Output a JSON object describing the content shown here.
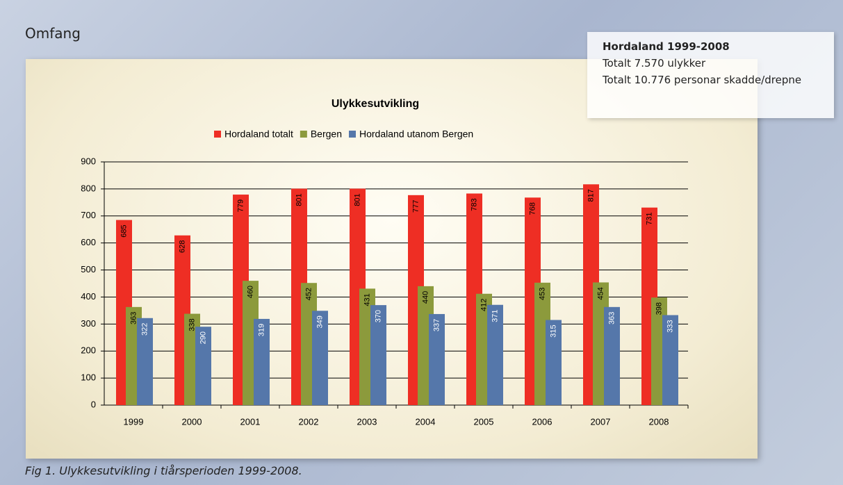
{
  "page": {
    "heading": "Omfang",
    "caption": "Fig 1. Ulykkesutvikling i tiårsperioden 1999-2008."
  },
  "info_box": {
    "title": "Hordaland 1999-2008",
    "lines": [
      "Totalt 7.570 ulykker",
      "Totalt 10.776 personar skadde/drepne"
    ]
  },
  "chart_data": {
    "type": "bar",
    "title": "Ulykkesutvikling",
    "categories": [
      "1999",
      "2000",
      "2001",
      "2002",
      "2003",
      "2004",
      "2005",
      "2006",
      "2007",
      "2008"
    ],
    "series": [
      {
        "name": "Hordaland totalt",
        "color": "#ee2e24",
        "values": [
          685,
          628,
          779,
          801,
          801,
          777,
          783,
          768,
          817,
          731
        ]
      },
      {
        "name": "Bergen",
        "color": "#8c9a3c",
        "values": [
          363,
          338,
          460,
          452,
          431,
          440,
          412,
          453,
          454,
          398
        ]
      },
      {
        "name": "Hordaland utanom Bergen",
        "color": "#5577aa",
        "values": [
          322,
          290,
          319,
          349,
          370,
          337,
          371,
          315,
          363,
          333
        ]
      }
    ],
    "ylim": [
      0,
      900
    ],
    "yticks": [
      0,
      100,
      200,
      300,
      400,
      500,
      600,
      700,
      800,
      900
    ],
    "grid": true,
    "legend": "top"
  }
}
